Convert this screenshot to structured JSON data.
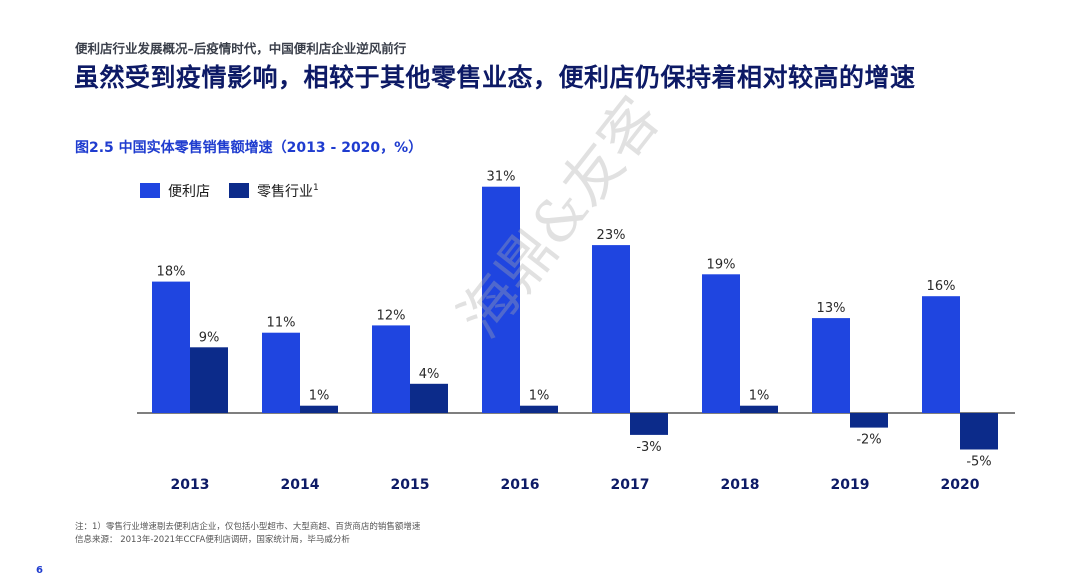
{
  "header": {
    "subtitle": "便利店行业发展概况–后疫情时代，中国便利店企业逆风前行",
    "headline": "虽然受到疫情影响，相较于其他零售业态，便利店仍保持着相对较高的增速"
  },
  "chart_data": {
    "type": "bar",
    "title": "图2.5 中国实体零售销售额增速（2013 - 2020，%）",
    "categories": [
      "2013",
      "2014",
      "2015",
      "2016",
      "2017",
      "2018",
      "2019",
      "2020"
    ],
    "series": [
      {
        "name": "便利店",
        "values": [
          18,
          11,
          12,
          31,
          23,
          19,
          13,
          16
        ],
        "color": "#1f45e0"
      },
      {
        "name": "零售行业",
        "values": [
          9,
          1,
          4,
          1,
          -3,
          1,
          -2,
          -5
        ],
        "color": "#0c2b8a"
      }
    ],
    "legend_superscript": "1",
    "unit": "%",
    "legend_position": "top-left",
    "grid": false
  },
  "footnotes": {
    "note": "注：1）零售行业增速剔去便利店企业，仅包括小型超市、大型商超、百货商店的销售额增速",
    "source": "信息来源： 2013年-2021年CCFA便利店调研，国家统计局，毕马威分析"
  },
  "page_number": "6",
  "watermark": "海鼎&友客"
}
